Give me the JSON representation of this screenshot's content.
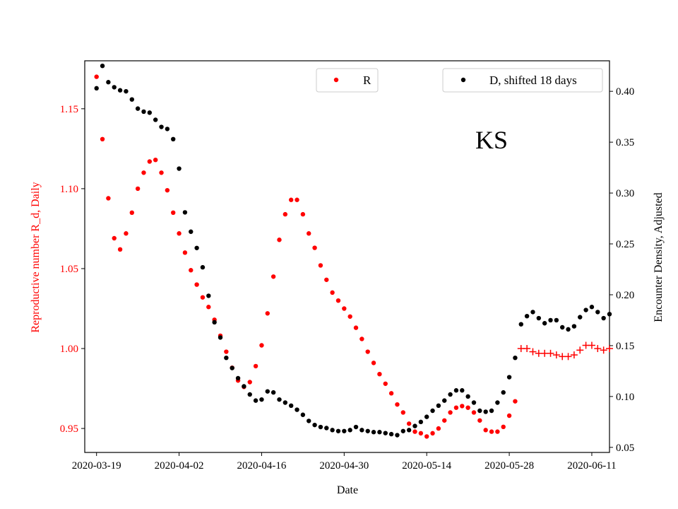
{
  "chart_data": {
    "type": "scatter",
    "xlabel": "Date",
    "ylabel_left": "Reproductive number R_d, Daily",
    "ylabel_right": "Encounter Density, Adjusted",
    "annotation": "KS",
    "x_ticks": [
      "2020-03-19",
      "2020-04-02",
      "2020-04-16",
      "2020-04-30",
      "2020-05-14",
      "2020-05-28",
      "2020-06-11"
    ],
    "y_left_ticks": [
      "0.95",
      "1.00",
      "1.05",
      "1.10",
      "1.15"
    ],
    "y_right_ticks": [
      "0.05",
      "0.10",
      "0.15",
      "0.20",
      "0.25",
      "0.30",
      "0.35",
      "0.40"
    ],
    "xlim": [
      "2020-03-17",
      "2020-06-14"
    ],
    "ylim_left": [
      0.935,
      1.18
    ],
    "ylim_right": [
      0.045,
      0.43
    ],
    "legend": [
      {
        "label": "R",
        "color": "#ff0000"
      },
      {
        "label": "D, shifted 18 days",
        "color": "#000000"
      }
    ],
    "colors": {
      "r_series": "#ff0000",
      "d_series": "#000000"
    },
    "series": [
      {
        "name": "R",
        "axis": "left",
        "color": "#ff0000",
        "start_date": "2020-03-19",
        "values": [
          1.17,
          1.131,
          1.094,
          1.069,
          1.062,
          1.072,
          1.085,
          1.1,
          1.11,
          1.117,
          1.118,
          1.11,
          1.099,
          1.085,
          1.072,
          1.06,
          1.049,
          1.04,
          1.032,
          1.026,
          1.018,
          1.008,
          0.998,
          0.988,
          0.98,
          0.976,
          0.979,
          0.989,
          1.002,
          1.022,
          1.045,
          1.068,
          1.084,
          1.093,
          1.093,
          1.084,
          1.072,
          1.063,
          1.052,
          1.043,
          1.035,
          1.03,
          1.025,
          1.02,
          1.013,
          1.006,
          0.998,
          0.991,
          0.984,
          0.978,
          0.972,
          0.965,
          0.96,
          0.953,
          0.948,
          0.947,
          0.945,
          0.947,
          0.95,
          0.955,
          0.96,
          0.963,
          0.964,
          0.963,
          0.96,
          0.955,
          0.949,
          0.948,
          0.948,
          0.951,
          0.958,
          0.967
        ]
      },
      {
        "name": "R",
        "axis": "left",
        "color": "#ff0000",
        "marker": "plus",
        "start_date": "2020-05-30",
        "values": [
          1.0,
          1.0,
          0.998,
          0.997,
          0.997,
          0.997,
          0.996,
          0.995,
          0.995,
          0.996,
          0.999,
          1.002,
          1.002,
          1.0,
          0.999,
          1.0
        ]
      },
      {
        "name": "D, shifted 18 days",
        "axis": "right",
        "color": "#000000",
        "start_date": "2020-03-19",
        "values": [
          0.403,
          0.425,
          0.409,
          0.404,
          0.401,
          0.4,
          0.392,
          0.383,
          0.38,
          0.379,
          0.372,
          0.365,
          0.363,
          0.353,
          0.324,
          0.281,
          0.262,
          0.246,
          0.227,
          0.199,
          0.173,
          0.158,
          0.138,
          0.128,
          0.118,
          0.11,
          0.102,
          0.096,
          0.097,
          0.105,
          0.104,
          0.097,
          0.094,
          0.091,
          0.087,
          0.082,
          0.076,
          0.072,
          0.07,
          0.069,
          0.067,
          0.066,
          0.066,
          0.067,
          0.07,
          0.067,
          0.066,
          0.065,
          0.065,
          0.064,
          0.063,
          0.062,
          0.066,
          0.067,
          0.071,
          0.075,
          0.08,
          0.086,
          0.091,
          0.096,
          0.102,
          0.106,
          0.106,
          0.1,
          0.094,
          0.086,
          0.085,
          0.086,
          0.094,
          0.104,
          0.119,
          0.138,
          0.171,
          0.179,
          0.183,
          0.177,
          0.172,
          0.175,
          0.175,
          0.168,
          0.166,
          0.169,
          0.178,
          0.185,
          0.188,
          0.183,
          0.177,
          0.181
        ]
      }
    ]
  }
}
